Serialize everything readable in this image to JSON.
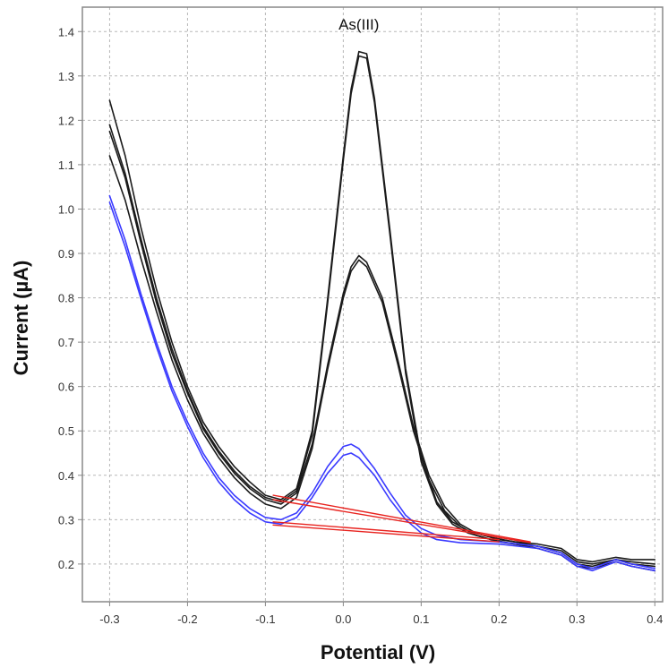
{
  "chart_data": {
    "type": "line",
    "title": "",
    "xlabel": "Potential (V)",
    "ylabel": "Current (µA)",
    "xlim": [
      -0.335,
      0.41
    ],
    "ylim": [
      0.115,
      1.455
    ],
    "x_ticks": [
      -0.3,
      -0.2,
      -0.1,
      0.0,
      0.1,
      0.2,
      0.3,
      0.4
    ],
    "x_tick_labels": [
      "-0.3",
      "-0.2",
      "-0.1",
      "0.0",
      "0.1",
      "0.2",
      "0.3",
      "0.4"
    ],
    "y_ticks": [
      0.2,
      0.3,
      0.4,
      0.5,
      0.6,
      0.7,
      0.8,
      0.9,
      1.0,
      1.1,
      1.2,
      1.3,
      1.4
    ],
    "y_tick_labels": [
      "0.2",
      "0.3",
      "0.4",
      "0.5",
      "0.6",
      "0.7",
      "0.8",
      "0.9",
      "1.0",
      "1.1",
      "1.2",
      "1.3",
      "1.4"
    ],
    "grid": true,
    "legend": "none",
    "annotations": [
      {
        "text": "As(III)",
        "x": 0.02,
        "y": 1.405
      }
    ],
    "colors": {
      "black_curves": "#1a1a1a",
      "blue_curves": "#3a3aff",
      "baselines": "#e8231f",
      "grid": "#b8b8b8",
      "axis": "#888888"
    },
    "series": [
      {
        "color": "black",
        "points": [
          [
            -0.3,
            1.245
          ],
          [
            -0.28,
            1.12
          ],
          [
            -0.26,
            0.96
          ],
          [
            -0.24,
            0.82
          ],
          [
            -0.22,
            0.7
          ],
          [
            -0.2,
            0.6
          ],
          [
            -0.18,
            0.52
          ],
          [
            -0.16,
            0.465
          ],
          [
            -0.14,
            0.42
          ],
          [
            -0.12,
            0.385
          ],
          [
            -0.1,
            0.355
          ],
          [
            -0.08,
            0.345
          ],
          [
            -0.06,
            0.37
          ],
          [
            -0.04,
            0.5
          ],
          [
            -0.02,
            0.8
          ],
          [
            0.0,
            1.12
          ],
          [
            0.01,
            1.27
          ],
          [
            0.02,
            1.355
          ],
          [
            0.03,
            1.35
          ],
          [
            0.04,
            1.25
          ],
          [
            0.06,
            0.95
          ],
          [
            0.08,
            0.64
          ],
          [
            0.1,
            0.44
          ],
          [
            0.12,
            0.34
          ],
          [
            0.14,
            0.295
          ],
          [
            0.16,
            0.275
          ],
          [
            0.18,
            0.265
          ],
          [
            0.2,
            0.255
          ],
          [
            0.22,
            0.25
          ],
          [
            0.25,
            0.245
          ],
          [
            0.28,
            0.235
          ],
          [
            0.3,
            0.21
          ],
          [
            0.32,
            0.205
          ],
          [
            0.35,
            0.215
          ],
          [
            0.37,
            0.21
          ],
          [
            0.4,
            0.21
          ]
        ]
      },
      {
        "color": "black",
        "points": [
          [
            -0.3,
            1.19
          ],
          [
            -0.28,
            1.08
          ],
          [
            -0.26,
            0.935
          ],
          [
            -0.24,
            0.8
          ],
          [
            -0.22,
            0.685
          ],
          [
            -0.2,
            0.59
          ],
          [
            -0.18,
            0.51
          ],
          [
            -0.16,
            0.455
          ],
          [
            -0.14,
            0.41
          ],
          [
            -0.12,
            0.375
          ],
          [
            -0.1,
            0.35
          ],
          [
            -0.08,
            0.34
          ],
          [
            -0.06,
            0.365
          ],
          [
            -0.04,
            0.49
          ],
          [
            -0.02,
            0.79
          ],
          [
            0.0,
            1.11
          ],
          [
            0.01,
            1.26
          ],
          [
            0.02,
            1.345
          ],
          [
            0.03,
            1.34
          ],
          [
            0.04,
            1.24
          ],
          [
            0.06,
            0.94
          ],
          [
            0.08,
            0.63
          ],
          [
            0.1,
            0.43
          ],
          [
            0.12,
            0.335
          ],
          [
            0.14,
            0.29
          ],
          [
            0.16,
            0.27
          ],
          [
            0.18,
            0.26
          ],
          [
            0.2,
            0.25
          ],
          [
            0.22,
            0.245
          ],
          [
            0.25,
            0.24
          ],
          [
            0.28,
            0.23
          ],
          [
            0.3,
            0.205
          ],
          [
            0.32,
            0.2
          ],
          [
            0.35,
            0.21
          ],
          [
            0.37,
            0.205
          ],
          [
            0.4,
            0.2
          ]
        ]
      },
      {
        "color": "black",
        "points": [
          [
            -0.3,
            1.175
          ],
          [
            -0.28,
            1.07
          ],
          [
            -0.26,
            0.925
          ],
          [
            -0.24,
            0.79
          ],
          [
            -0.22,
            0.675
          ],
          [
            -0.2,
            0.585
          ],
          [
            -0.18,
            0.505
          ],
          [
            -0.16,
            0.45
          ],
          [
            -0.14,
            0.405
          ],
          [
            -0.12,
            0.37
          ],
          [
            -0.1,
            0.345
          ],
          [
            -0.08,
            0.335
          ],
          [
            -0.06,
            0.36
          ],
          [
            -0.04,
            0.47
          ],
          [
            -0.02,
            0.65
          ],
          [
            0.0,
            0.81
          ],
          [
            0.01,
            0.87
          ],
          [
            0.02,
            0.895
          ],
          [
            0.03,
            0.88
          ],
          [
            0.05,
            0.8
          ],
          [
            0.07,
            0.66
          ],
          [
            0.09,
            0.51
          ],
          [
            0.11,
            0.4
          ],
          [
            0.13,
            0.33
          ],
          [
            0.15,
            0.29
          ],
          [
            0.17,
            0.27
          ],
          [
            0.19,
            0.26
          ],
          [
            0.22,
            0.25
          ],
          [
            0.25,
            0.24
          ],
          [
            0.28,
            0.225
          ],
          [
            0.3,
            0.2
          ],
          [
            0.32,
            0.195
          ],
          [
            0.35,
            0.21
          ],
          [
            0.37,
            0.2
          ],
          [
            0.4,
            0.195
          ]
        ]
      },
      {
        "color": "black",
        "points": [
          [
            -0.3,
            1.12
          ],
          [
            -0.28,
            1.02
          ],
          [
            -0.26,
            0.89
          ],
          [
            -0.24,
            0.77
          ],
          [
            -0.22,
            0.66
          ],
          [
            -0.2,
            0.57
          ],
          [
            -0.18,
            0.495
          ],
          [
            -0.16,
            0.44
          ],
          [
            -0.14,
            0.395
          ],
          [
            -0.12,
            0.36
          ],
          [
            -0.1,
            0.335
          ],
          [
            -0.08,
            0.325
          ],
          [
            -0.06,
            0.35
          ],
          [
            -0.04,
            0.46
          ],
          [
            -0.02,
            0.64
          ],
          [
            0.0,
            0.8
          ],
          [
            0.01,
            0.86
          ],
          [
            0.02,
            0.885
          ],
          [
            0.03,
            0.87
          ],
          [
            0.05,
            0.79
          ],
          [
            0.07,
            0.65
          ],
          [
            0.09,
            0.5
          ],
          [
            0.11,
            0.39
          ],
          [
            0.13,
            0.32
          ],
          [
            0.15,
            0.285
          ],
          [
            0.17,
            0.265
          ],
          [
            0.19,
            0.255
          ],
          [
            0.22,
            0.245
          ],
          [
            0.25,
            0.235
          ],
          [
            0.28,
            0.22
          ],
          [
            0.3,
            0.195
          ],
          [
            0.32,
            0.19
          ],
          [
            0.35,
            0.205
          ],
          [
            0.37,
            0.195
          ],
          [
            0.4,
            0.185
          ]
        ]
      },
      {
        "color": "blue",
        "points": [
          [
            -0.3,
            1.03
          ],
          [
            -0.28,
            0.93
          ],
          [
            -0.26,
            0.81
          ],
          [
            -0.24,
            0.7
          ],
          [
            -0.22,
            0.6
          ],
          [
            -0.2,
            0.52
          ],
          [
            -0.18,
            0.45
          ],
          [
            -0.16,
            0.395
          ],
          [
            -0.14,
            0.355
          ],
          [
            -0.12,
            0.325
          ],
          [
            -0.1,
            0.305
          ],
          [
            -0.08,
            0.3
          ],
          [
            -0.06,
            0.315
          ],
          [
            -0.04,
            0.36
          ],
          [
            -0.02,
            0.42
          ],
          [
            0.0,
            0.465
          ],
          [
            0.01,
            0.47
          ],
          [
            0.02,
            0.46
          ],
          [
            0.04,
            0.415
          ],
          [
            0.06,
            0.36
          ],
          [
            0.08,
            0.31
          ],
          [
            0.1,
            0.28
          ],
          [
            0.12,
            0.265
          ],
          [
            0.15,
            0.255
          ],
          [
            0.2,
            0.25
          ],
          [
            0.25,
            0.24
          ],
          [
            0.28,
            0.225
          ],
          [
            0.3,
            0.2
          ],
          [
            0.32,
            0.19
          ],
          [
            0.35,
            0.21
          ],
          [
            0.37,
            0.2
          ],
          [
            0.4,
            0.19
          ]
        ]
      },
      {
        "color": "blue",
        "points": [
          [
            -0.3,
            1.015
          ],
          [
            -0.28,
            0.915
          ],
          [
            -0.26,
            0.8
          ],
          [
            -0.24,
            0.69
          ],
          [
            -0.22,
            0.59
          ],
          [
            -0.2,
            0.51
          ],
          [
            -0.18,
            0.44
          ],
          [
            -0.16,
            0.385
          ],
          [
            -0.14,
            0.345
          ],
          [
            -0.12,
            0.315
          ],
          [
            -0.1,
            0.295
          ],
          [
            -0.08,
            0.29
          ],
          [
            -0.06,
            0.305
          ],
          [
            -0.04,
            0.35
          ],
          [
            -0.02,
            0.405
          ],
          [
            0.0,
            0.445
          ],
          [
            0.01,
            0.45
          ],
          [
            0.02,
            0.44
          ],
          [
            0.04,
            0.4
          ],
          [
            0.06,
            0.345
          ],
          [
            0.08,
            0.3
          ],
          [
            0.1,
            0.27
          ],
          [
            0.12,
            0.255
          ],
          [
            0.15,
            0.248
          ],
          [
            0.2,
            0.245
          ],
          [
            0.25,
            0.235
          ],
          [
            0.28,
            0.22
          ],
          [
            0.3,
            0.195
          ],
          [
            0.32,
            0.185
          ],
          [
            0.35,
            0.205
          ],
          [
            0.37,
            0.195
          ],
          [
            0.4,
            0.185
          ]
        ]
      },
      {
        "color": "red",
        "points": [
          [
            -0.09,
            0.355
          ],
          [
            0.24,
            0.25
          ]
        ]
      },
      {
        "color": "red",
        "points": [
          [
            -0.09,
            0.345
          ],
          [
            0.24,
            0.248
          ]
        ]
      },
      {
        "color": "red",
        "points": [
          [
            -0.09,
            0.295
          ],
          [
            0.2,
            0.255
          ]
        ]
      },
      {
        "color": "red",
        "points": [
          [
            -0.09,
            0.288
          ],
          [
            0.2,
            0.25
          ]
        ]
      }
    ]
  }
}
